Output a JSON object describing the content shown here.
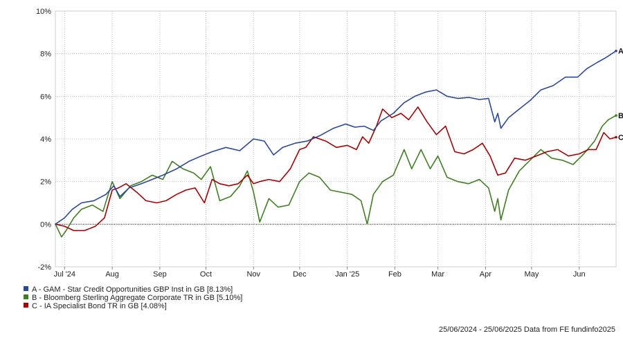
{
  "chart_data": {
    "type": "line",
    "ylim": [
      -2,
      10
    ],
    "y_tick_labels": [
      "-2%",
      "0%",
      "2%",
      "4%",
      "6%",
      "8%",
      "10%"
    ],
    "y_tick_values": [
      -2,
      0,
      2,
      4,
      6,
      8,
      10
    ],
    "x_tick_labels": [
      "Jul '24",
      "Aug",
      "Sep",
      "Oct",
      "Nov",
      "Dec",
      "Jan '25",
      "Feb",
      "Mar",
      "Apr",
      "May",
      "Jun"
    ],
    "x_tick_dates": [
      "2024-07-01",
      "2024-08-01",
      "2024-09-01",
      "2024-10-01",
      "2024-11-01",
      "2024-12-01",
      "2025-01-01",
      "2025-02-01",
      "2025-03-01",
      "2025-04-01",
      "2025-05-01",
      "2025-06-01"
    ],
    "x_range": [
      "2024-06-25",
      "2025-06-25"
    ],
    "grid": true,
    "zero_line": true,
    "legend_position": "bottom-left",
    "footer": "25/06/2024 - 25/06/2025 Data from FE fundinfo2025",
    "series": [
      {
        "key": "A",
        "name": "A - GAM - Star Credit Opportunities GBP Inst in GB [8.13%]",
        "color": "#2a479a",
        "points": [
          [
            "2024-06-25",
            0.0
          ],
          [
            "2024-07-01",
            0.3
          ],
          [
            "2024-07-06",
            0.7
          ],
          [
            "2024-07-12",
            1.0
          ],
          [
            "2024-07-20",
            1.1
          ],
          [
            "2024-07-28",
            1.4
          ],
          [
            "2024-08-02",
            1.8
          ],
          [
            "2024-08-06",
            1.3
          ],
          [
            "2024-08-12",
            1.7
          ],
          [
            "2024-08-20",
            1.9
          ],
          [
            "2024-08-27",
            2.1
          ],
          [
            "2024-09-03",
            2.3
          ],
          [
            "2024-09-12",
            2.6
          ],
          [
            "2024-09-20",
            2.95
          ],
          [
            "2024-09-28",
            3.2
          ],
          [
            "2024-10-05",
            3.4
          ],
          [
            "2024-10-14",
            3.6
          ],
          [
            "2024-10-23",
            3.45
          ],
          [
            "2024-11-01",
            4.0
          ],
          [
            "2024-11-08",
            3.9
          ],
          [
            "2024-11-14",
            3.25
          ],
          [
            "2024-11-20",
            3.6
          ],
          [
            "2024-11-28",
            3.8
          ],
          [
            "2024-12-06",
            3.9
          ],
          [
            "2024-12-14",
            4.15
          ],
          [
            "2024-12-23",
            4.5
          ],
          [
            "2024-12-31",
            4.7
          ],
          [
            "2025-01-06",
            4.55
          ],
          [
            "2025-01-12",
            4.6
          ],
          [
            "2025-01-18",
            4.4
          ],
          [
            "2025-01-23",
            4.85
          ],
          [
            "2025-01-31",
            5.2
          ],
          [
            "2025-02-07",
            5.7
          ],
          [
            "2025-02-14",
            6.0
          ],
          [
            "2025-02-21",
            6.2
          ],
          [
            "2025-02-28",
            6.3
          ],
          [
            "2025-03-07",
            6.0
          ],
          [
            "2025-03-14",
            5.9
          ],
          [
            "2025-03-21",
            5.95
          ],
          [
            "2025-03-28",
            5.85
          ],
          [
            "2025-04-03",
            5.9
          ],
          [
            "2025-04-07",
            4.8
          ],
          [
            "2025-04-09",
            5.2
          ],
          [
            "2025-04-11",
            4.5
          ],
          [
            "2025-04-16",
            5.0
          ],
          [
            "2025-04-23",
            5.4
          ],
          [
            "2025-04-30",
            5.8
          ],
          [
            "2025-05-07",
            6.3
          ],
          [
            "2025-05-15",
            6.5
          ],
          [
            "2025-05-23",
            6.9
          ],
          [
            "2025-05-31",
            6.9
          ],
          [
            "2025-06-06",
            7.3
          ],
          [
            "2025-06-13",
            7.6
          ],
          [
            "2025-06-18",
            7.8
          ],
          [
            "2025-06-25",
            8.13
          ]
        ]
      },
      {
        "key": "B",
        "name": "B - Bloomberg Sterling Aggregate Corporate TR in GB [5.10%]",
        "color": "#3f7f20",
        "points": [
          [
            "2024-06-25",
            0.0
          ],
          [
            "2024-06-29",
            -0.6
          ],
          [
            "2024-07-02",
            -0.3
          ],
          [
            "2024-07-07",
            0.3
          ],
          [
            "2024-07-12",
            0.7
          ],
          [
            "2024-07-19",
            0.9
          ],
          [
            "2024-07-26",
            0.6
          ],
          [
            "2024-08-01",
            2.0
          ],
          [
            "2024-08-06",
            1.2
          ],
          [
            "2024-08-13",
            1.8
          ],
          [
            "2024-08-20",
            2.0
          ],
          [
            "2024-08-27",
            2.3
          ],
          [
            "2024-09-03",
            2.1
          ],
          [
            "2024-09-09",
            2.95
          ],
          [
            "2024-09-16",
            2.6
          ],
          [
            "2024-09-23",
            2.4
          ],
          [
            "2024-09-28",
            2.1
          ],
          [
            "2024-10-04",
            2.7
          ],
          [
            "2024-10-10",
            1.1
          ],
          [
            "2024-10-17",
            1.3
          ],
          [
            "2024-10-23",
            1.8
          ],
          [
            "2024-10-28",
            2.5
          ],
          [
            "2024-11-01",
            1.5
          ],
          [
            "2024-11-05",
            0.1
          ],
          [
            "2024-11-11",
            1.2
          ],
          [
            "2024-11-17",
            0.8
          ],
          [
            "2024-11-24",
            0.9
          ],
          [
            "2024-12-01",
            2.0
          ],
          [
            "2024-12-07",
            2.4
          ],
          [
            "2024-12-14",
            2.2
          ],
          [
            "2024-12-21",
            1.6
          ],
          [
            "2024-12-28",
            1.5
          ],
          [
            "2025-01-04",
            1.4
          ],
          [
            "2025-01-10",
            1.1
          ],
          [
            "2025-01-14",
            0.0
          ],
          [
            "2025-01-18",
            1.4
          ],
          [
            "2025-01-24",
            2.0
          ],
          [
            "2025-01-31",
            2.3
          ],
          [
            "2025-02-07",
            3.5
          ],
          [
            "2025-02-12",
            2.6
          ],
          [
            "2025-02-18",
            3.5
          ],
          [
            "2025-02-24",
            2.6
          ],
          [
            "2025-03-01",
            3.2
          ],
          [
            "2025-03-07",
            2.2
          ],
          [
            "2025-03-14",
            2.0
          ],
          [
            "2025-03-21",
            1.9
          ],
          [
            "2025-03-28",
            2.1
          ],
          [
            "2025-04-03",
            1.7
          ],
          [
            "2025-04-07",
            0.6
          ],
          [
            "2025-04-09",
            1.2
          ],
          [
            "2025-04-11",
            0.2
          ],
          [
            "2025-04-16",
            1.6
          ],
          [
            "2025-04-23",
            2.5
          ],
          [
            "2025-04-30",
            3.0
          ],
          [
            "2025-05-07",
            3.5
          ],
          [
            "2025-05-14",
            3.1
          ],
          [
            "2025-05-21",
            3.0
          ],
          [
            "2025-05-28",
            2.8
          ],
          [
            "2025-06-04",
            3.3
          ],
          [
            "2025-06-11",
            3.9
          ],
          [
            "2025-06-16",
            4.6
          ],
          [
            "2025-06-20",
            4.9
          ],
          [
            "2025-06-25",
            5.1
          ]
        ]
      },
      {
        "key": "C",
        "name": "C - IA Specialist Bond TR in GB [4.08%]",
        "color": "#a80000",
        "points": [
          [
            "2024-06-25",
            0.0
          ],
          [
            "2024-07-01",
            -0.1
          ],
          [
            "2024-07-07",
            -0.3
          ],
          [
            "2024-07-14",
            -0.3
          ],
          [
            "2024-07-21",
            -0.1
          ],
          [
            "2024-07-27",
            0.3
          ],
          [
            "2024-08-01",
            1.6
          ],
          [
            "2024-08-05",
            1.7
          ],
          [
            "2024-08-10",
            1.9
          ],
          [
            "2024-08-17",
            1.5
          ],
          [
            "2024-08-23",
            1.1
          ],
          [
            "2024-08-30",
            1.0
          ],
          [
            "2024-09-05",
            1.1
          ],
          [
            "2024-09-12",
            1.4
          ],
          [
            "2024-09-18",
            1.6
          ],
          [
            "2024-09-24",
            1.7
          ],
          [
            "2024-09-30",
            1.0
          ],
          [
            "2024-10-05",
            2.1
          ],
          [
            "2024-10-10",
            1.9
          ],
          [
            "2024-10-16",
            1.8
          ],
          [
            "2024-10-22",
            1.9
          ],
          [
            "2024-10-28",
            2.3
          ],
          [
            "2024-11-01",
            1.9
          ],
          [
            "2024-11-05",
            2.0
          ],
          [
            "2024-11-11",
            2.1
          ],
          [
            "2024-11-18",
            2.0
          ],
          [
            "2024-11-25",
            2.6
          ],
          [
            "2024-12-01",
            3.5
          ],
          [
            "2024-12-05",
            3.6
          ],
          [
            "2024-12-10",
            4.1
          ],
          [
            "2024-12-18",
            3.9
          ],
          [
            "2024-12-25",
            3.6
          ],
          [
            "2025-01-01",
            3.7
          ],
          [
            "2025-01-07",
            3.5
          ],
          [
            "2025-01-11",
            4.1
          ],
          [
            "2025-01-15",
            3.8
          ],
          [
            "2025-01-20",
            4.6
          ],
          [
            "2025-01-24",
            5.4
          ],
          [
            "2025-01-30",
            5.0
          ],
          [
            "2025-02-05",
            5.2
          ],
          [
            "2025-02-10",
            4.9
          ],
          [
            "2025-02-16",
            5.5
          ],
          [
            "2025-02-22",
            4.8
          ],
          [
            "2025-02-28",
            4.2
          ],
          [
            "2025-03-06",
            4.6
          ],
          [
            "2025-03-12",
            3.4
          ],
          [
            "2025-03-18",
            3.3
          ],
          [
            "2025-03-24",
            3.5
          ],
          [
            "2025-03-30",
            3.8
          ],
          [
            "2025-04-04",
            3.2
          ],
          [
            "2025-04-09",
            2.3
          ],
          [
            "2025-04-14",
            2.4
          ],
          [
            "2025-04-20",
            3.1
          ],
          [
            "2025-04-27",
            3.0
          ],
          [
            "2025-05-04",
            3.2
          ],
          [
            "2025-05-11",
            3.4
          ],
          [
            "2025-05-18",
            3.5
          ],
          [
            "2025-05-25",
            3.2
          ],
          [
            "2025-06-01",
            3.3
          ],
          [
            "2025-06-07",
            3.5
          ],
          [
            "2025-06-12",
            3.5
          ],
          [
            "2025-06-17",
            4.3
          ],
          [
            "2025-06-21",
            4.0
          ],
          [
            "2025-06-25",
            4.08
          ]
        ]
      }
    ]
  }
}
